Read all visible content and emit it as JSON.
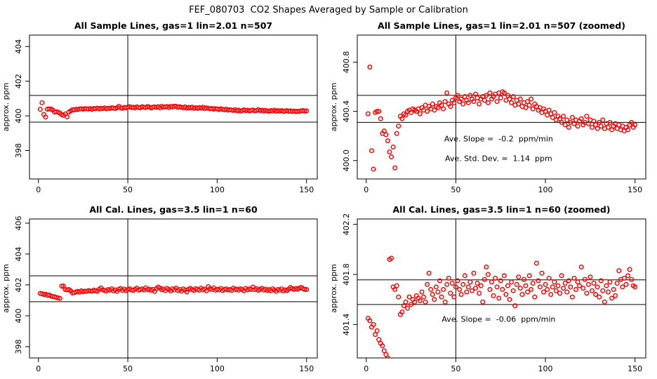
{
  "title": "FEF_080703  CO2 Shapes Averaged by Sample or Calibration",
  "chart_data": [
    {
      "type": "scatter",
      "title": "All Sample Lines, gas=1 lin=2.01 n=507",
      "ylabel": "approx. ppm",
      "color": "#ff0000",
      "x": [
        1,
        2,
        3,
        4,
        5,
        6,
        7,
        8,
        9,
        10,
        11,
        12,
        13,
        14,
        15,
        16,
        17,
        18,
        19,
        20,
        21,
        22,
        23,
        24,
        25,
        26,
        27,
        28,
        29,
        30,
        31,
        32,
        33,
        34,
        35,
        36,
        37,
        38,
        39,
        40,
        41,
        42,
        43,
        44,
        45,
        46,
        47,
        48,
        49,
        50,
        51,
        52,
        53,
        54,
        55,
        56,
        57,
        58,
        59,
        60,
        61,
        62,
        63,
        64,
        65,
        66,
        67,
        68,
        69,
        70,
        71,
        72,
        73,
        74,
        75,
        76,
        77,
        78,
        79,
        80,
        81,
        82,
        83,
        84,
        85,
        86,
        87,
        88,
        89,
        90,
        91,
        92,
        93,
        94,
        95,
        96,
        97,
        98,
        99,
        100,
        101,
        102,
        103,
        104,
        105,
        106,
        107,
        108,
        109,
        110,
        111,
        112,
        113,
        114,
        115,
        116,
        117,
        118,
        119,
        120,
        121,
        122,
        123,
        124,
        125,
        126,
        127,
        128,
        129,
        130,
        131,
        132,
        133,
        134,
        135,
        136,
        137,
        138,
        139,
        140,
        141,
        142,
        143,
        144,
        145,
        146,
        147,
        148,
        149,
        150
      ],
      "values": [
        400.38,
        400.76,
        400.08,
        399.93,
        400.39,
        400.4,
        400.4,
        400.34,
        400.22,
        400.24,
        400.21,
        400.16,
        400.07,
        400.03,
        400.11,
        399.94,
        400.22,
        400.28,
        400.36,
        400.34,
        400.38,
        400.37,
        400.4,
        400.41,
        400.39,
        400.42,
        400.41,
        400.4,
        400.42,
        400.38,
        400.43,
        400.41,
        400.45,
        400.4,
        400.44,
        400.42,
        400.46,
        400.41,
        400.44,
        400.43,
        400.47,
        400.45,
        400.42,
        400.48,
        400.55,
        400.46,
        400.44,
        400.49,
        400.47,
        400.51,
        400.53,
        400.48,
        400.5,
        400.46,
        400.52,
        400.49,
        400.47,
        400.53,
        400.5,
        400.48,
        400.54,
        400.51,
        400.46,
        400.5,
        400.52,
        400.49,
        400.53,
        400.47,
        400.55,
        400.5,
        400.52,
        400.54,
        400.48,
        400.55,
        400.51,
        400.56,
        400.55,
        400.49,
        400.53,
        400.5,
        400.47,
        400.52,
        400.45,
        400.49,
        400.46,
        400.5,
        400.44,
        400.47,
        400.43,
        400.48,
        400.45,
        400.5,
        400.42,
        400.46,
        400.44,
        400.41,
        400.43,
        400.39,
        400.42,
        400.4,
        400.37,
        400.41,
        400.38,
        400.35,
        400.39,
        400.33,
        400.36,
        400.34,
        400.31,
        400.36,
        400.29,
        400.33,
        400.27,
        400.31,
        400.35,
        400.3,
        400.33,
        400.28,
        400.32,
        400.34,
        400.29,
        400.31,
        400.36,
        400.3,
        400.33,
        400.27,
        400.32,
        400.29,
        400.26,
        400.31,
        400.28,
        400.33,
        400.26,
        400.3,
        400.27,
        400.31,
        400.25,
        400.28,
        400.3,
        400.26,
        400.29,
        400.25,
        400.28,
        400.24,
        400.27,
        400.25,
        400.29,
        400.31,
        400.27,
        400.29
      ],
      "xlim": [
        -5,
        156
      ],
      "xticks": [
        0,
        50,
        100,
        150
      ],
      "ylim": [
        396.36,
        404.66
      ],
      "yticks": [
        398,
        400,
        402,
        404
      ],
      "hlines": [
        401.18,
        399.64
      ],
      "vlines": [
        50
      ],
      "annotations": []
    },
    {
      "type": "scatter",
      "title": "All Sample Lines, gas=1 lin=2.01 n=507 (zoomed)",
      "ylabel": "approx. ppm",
      "color": "#ff0000",
      "x": [
        1,
        2,
        3,
        4,
        5,
        6,
        7,
        8,
        9,
        10,
        11,
        12,
        13,
        14,
        15,
        16,
        17,
        18,
        19,
        20,
        21,
        22,
        23,
        24,
        25,
        26,
        27,
        28,
        29,
        30,
        31,
        32,
        33,
        34,
        35,
        36,
        37,
        38,
        39,
        40,
        41,
        42,
        43,
        44,
        45,
        46,
        47,
        48,
        49,
        50,
        51,
        52,
        53,
        54,
        55,
        56,
        57,
        58,
        59,
        60,
        61,
        62,
        63,
        64,
        65,
        66,
        67,
        68,
        69,
        70,
        71,
        72,
        73,
        74,
        75,
        76,
        77,
        78,
        79,
        80,
        81,
        82,
        83,
        84,
        85,
        86,
        87,
        88,
        89,
        90,
        91,
        92,
        93,
        94,
        95,
        96,
        97,
        98,
        99,
        100,
        101,
        102,
        103,
        104,
        105,
        106,
        107,
        108,
        109,
        110,
        111,
        112,
        113,
        114,
        115,
        116,
        117,
        118,
        119,
        120,
        121,
        122,
        123,
        124,
        125,
        126,
        127,
        128,
        129,
        130,
        131,
        132,
        133,
        134,
        135,
        136,
        137,
        138,
        139,
        140,
        141,
        142,
        143,
        144,
        145,
        146,
        147,
        148,
        149,
        150
      ],
      "values": [
        400.38,
        400.76,
        400.08,
        399.93,
        400.39,
        400.4,
        400.4,
        400.34,
        400.22,
        400.24,
        400.21,
        400.16,
        400.07,
        400.03,
        400.11,
        399.94,
        400.22,
        400.28,
        400.36,
        400.34,
        400.38,
        400.37,
        400.4,
        400.41,
        400.39,
        400.42,
        400.41,
        400.4,
        400.42,
        400.38,
        400.43,
        400.41,
        400.45,
        400.4,
        400.44,
        400.42,
        400.46,
        400.41,
        400.44,
        400.43,
        400.47,
        400.45,
        400.42,
        400.48,
        400.55,
        400.46,
        400.44,
        400.49,
        400.47,
        400.51,
        400.53,
        400.48,
        400.5,
        400.46,
        400.52,
        400.49,
        400.47,
        400.53,
        400.5,
        400.48,
        400.54,
        400.51,
        400.46,
        400.5,
        400.52,
        400.49,
        400.53,
        400.47,
        400.55,
        400.5,
        400.52,
        400.54,
        400.48,
        400.55,
        400.51,
        400.56,
        400.55,
        400.49,
        400.53,
        400.5,
        400.47,
        400.52,
        400.45,
        400.49,
        400.46,
        400.5,
        400.44,
        400.47,
        400.43,
        400.48,
        400.45,
        400.5,
        400.42,
        400.46,
        400.44,
        400.41,
        400.43,
        400.39,
        400.42,
        400.4,
        400.37,
        400.41,
        400.38,
        400.35,
        400.39,
        400.33,
        400.36,
        400.34,
        400.31,
        400.36,
        400.29,
        400.33,
        400.27,
        400.31,
        400.35,
        400.3,
        400.33,
        400.28,
        400.32,
        400.34,
        400.29,
        400.31,
        400.36,
        400.3,
        400.33,
        400.27,
        400.32,
        400.29,
        400.26,
        400.31,
        400.28,
        400.33,
        400.26,
        400.3,
        400.27,
        400.31,
        400.25,
        400.28,
        400.3,
        400.26,
        400.29,
        400.25,
        400.28,
        400.24,
        400.27,
        400.25,
        400.29,
        400.31,
        400.27,
        400.29
      ],
      "xlim": [
        -5,
        156
      ],
      "xticks": [
        0,
        50,
        100,
        150
      ],
      "ylim": [
        399.85,
        401.02
      ],
      "yticks": [
        {
          "value": 400,
          "label": "400.0"
        },
        400.4,
        400.8
      ],
      "hlines": [
        400.53,
        400.31
      ],
      "vlines": [
        50
      ],
      "annotations": [
        "Ave. Slope =  -0.2  ppm/min",
        "Ave. Std. Dev. =  1.14  ppm"
      ]
    },
    {
      "type": "scatter",
      "title": "All Cal. Lines, gas=3.5 lin=1 n=60",
      "ylabel": "approx. ppm",
      "color": "#ff0000",
      "x": [
        1,
        2,
        3,
        4,
        5,
        6,
        7,
        8,
        9,
        10,
        11,
        12,
        13,
        14,
        15,
        16,
        17,
        18,
        19,
        20,
        21,
        22,
        23,
        24,
        25,
        26,
        27,
        28,
        29,
        30,
        31,
        32,
        33,
        34,
        35,
        36,
        37,
        38,
        39,
        40,
        41,
        42,
        43,
        44,
        45,
        46,
        47,
        48,
        49,
        50,
        51,
        52,
        53,
        54,
        55,
        56,
        57,
        58,
        59,
        60,
        61,
        62,
        63,
        64,
        65,
        66,
        67,
        68,
        69,
        70,
        71,
        72,
        73,
        74,
        75,
        76,
        77,
        78,
        79,
        80,
        81,
        82,
        83,
        84,
        85,
        86,
        87,
        88,
        89,
        90,
        91,
        92,
        93,
        94,
        95,
        96,
        97,
        98,
        99,
        100,
        101,
        102,
        103,
        104,
        105,
        106,
        107,
        108,
        109,
        110,
        111,
        112,
        113,
        114,
        115,
        116,
        117,
        118,
        119,
        120,
        121,
        122,
        123,
        124,
        125,
        126,
        127,
        128,
        129,
        130,
        131,
        132,
        133,
        134,
        135,
        136,
        137,
        138,
        139,
        140,
        141,
        142,
        143,
        144,
        145,
        146,
        147,
        148,
        149,
        150
      ],
      "values": [
        401.45,
        401.43,
        401.38,
        401.4,
        401.32,
        401.35,
        401.28,
        401.25,
        401.23,
        401.19,
        401.16,
        401.13,
        401.92,
        401.93,
        401.7,
        401.68,
        401.71,
        401.62,
        401.48,
        401.5,
        401.55,
        401.58,
        401.53,
        401.62,
        401.56,
        401.6,
        401.58,
        401.63,
        401.61,
        401.59,
        401.66,
        401.62,
        401.58,
        401.72,
        401.81,
        401.68,
        401.64,
        401.6,
        401.7,
        401.66,
        401.75,
        401.62,
        401.68,
        401.58,
        401.72,
        401.77,
        401.65,
        401.73,
        401.62,
        401.7,
        401.75,
        401.68,
        401.64,
        401.72,
        401.79,
        401.66,
        401.7,
        401.74,
        401.67,
        401.81,
        401.69,
        401.73,
        401.65,
        401.71,
        401.58,
        401.76,
        401.86,
        401.8,
        401.68,
        401.74,
        401.63,
        401.77,
        401.7,
        401.61,
        401.75,
        401.68,
        401.79,
        401.64,
        401.71,
        401.6,
        401.74,
        401.67,
        401.55,
        401.72,
        401.78,
        401.69,
        401.64,
        401.76,
        401.71,
        401.66,
        401.79,
        401.68,
        401.73,
        401.62,
        401.89,
        401.75,
        401.7,
        401.81,
        401.66,
        401.72,
        401.68,
        401.77,
        401.64,
        401.7,
        401.74,
        401.67,
        401.71,
        401.65,
        401.79,
        401.69,
        401.73,
        401.66,
        401.75,
        401.7,
        401.62,
        401.77,
        401.68,
        401.74,
        401.71,
        401.86,
        401.69,
        401.76,
        401.65,
        401.72,
        401.78,
        401.67,
        401.73,
        401.64,
        401.7,
        401.62,
        401.75,
        401.67,
        401.58,
        401.71,
        401.66,
        401.74,
        401.61,
        401.68,
        401.63,
        401.73,
        401.83,
        401.76,
        401.7,
        401.77,
        401.72,
        401.79,
        401.84,
        401.76,
        401.71,
        401.7
      ],
      "xlim": [
        -5,
        156
      ],
      "xticks": [
        0,
        50,
        100,
        150
      ],
      "ylim": [
        397.27,
        406.27
      ],
      "yticks": [
        398,
        400,
        402,
        404,
        406
      ],
      "hlines": [
        402.59,
        400.91
      ],
      "vlines": [
        50
      ],
      "annotations": []
    },
    {
      "type": "scatter",
      "title": "All Cal. Lines, gas=3.5 lin=1 n=60 (zoomed)",
      "ylabel": "approx. ppm",
      "color": "#ff0000",
      "x": [
        1,
        2,
        3,
        4,
        5,
        6,
        7,
        8,
        9,
        10,
        11,
        12,
        13,
        14,
        15,
        16,
        17,
        18,
        19,
        20,
        21,
        22,
        23,
        24,
        25,
        26,
        27,
        28,
        29,
        30,
        31,
        32,
        33,
        34,
        35,
        36,
        37,
        38,
        39,
        40,
        41,
        42,
        43,
        44,
        45,
        46,
        47,
        48,
        49,
        50,
        51,
        52,
        53,
        54,
        55,
        56,
        57,
        58,
        59,
        60,
        61,
        62,
        63,
        64,
        65,
        66,
        67,
        68,
        69,
        70,
        71,
        72,
        73,
        74,
        75,
        76,
        77,
        78,
        79,
        80,
        81,
        82,
        83,
        84,
        85,
        86,
        87,
        88,
        89,
        90,
        91,
        92,
        93,
        94,
        95,
        96,
        97,
        98,
        99,
        100,
        101,
        102,
        103,
        104,
        105,
        106,
        107,
        108,
        109,
        110,
        111,
        112,
        113,
        114,
        115,
        116,
        117,
        118,
        119,
        120,
        121,
        122,
        123,
        124,
        125,
        126,
        127,
        128,
        129,
        130,
        131,
        132,
        133,
        134,
        135,
        136,
        137,
        138,
        139,
        140,
        141,
        142,
        143,
        144,
        145,
        146,
        147,
        148,
        149,
        150
      ],
      "values": [
        401.45,
        401.43,
        401.38,
        401.4,
        401.32,
        401.35,
        401.28,
        401.25,
        401.23,
        401.19,
        401.16,
        401.13,
        401.92,
        401.93,
        401.7,
        401.68,
        401.71,
        401.62,
        401.48,
        401.5,
        401.55,
        401.58,
        401.53,
        401.62,
        401.56,
        401.6,
        401.58,
        401.63,
        401.61,
        401.59,
        401.66,
        401.62,
        401.58,
        401.72,
        401.81,
        401.68,
        401.64,
        401.6,
        401.7,
        401.66,
        401.75,
        401.62,
        401.68,
        401.58,
        401.72,
        401.77,
        401.65,
        401.73,
        401.62,
        401.7,
        401.75,
        401.68,
        401.64,
        401.72,
        401.79,
        401.66,
        401.7,
        401.74,
        401.67,
        401.81,
        401.69,
        401.73,
        401.65,
        401.71,
        401.58,
        401.76,
        401.86,
        401.8,
        401.68,
        401.74,
        401.63,
        401.77,
        401.7,
        401.61,
        401.75,
        401.68,
        401.79,
        401.64,
        401.71,
        401.6,
        401.74,
        401.67,
        401.55,
        401.72,
        401.78,
        401.69,
        401.64,
        401.76,
        401.71,
        401.66,
        401.79,
        401.68,
        401.73,
        401.62,
        401.89,
        401.75,
        401.7,
        401.81,
        401.66,
        401.72,
        401.68,
        401.77,
        401.64,
        401.7,
        401.74,
        401.67,
        401.71,
        401.65,
        401.79,
        401.69,
        401.73,
        401.66,
        401.75,
        401.7,
        401.62,
        401.77,
        401.68,
        401.74,
        401.71,
        401.86,
        401.69,
        401.76,
        401.65,
        401.72,
        401.78,
        401.67,
        401.73,
        401.64,
        401.7,
        401.62,
        401.75,
        401.67,
        401.58,
        401.71,
        401.66,
        401.74,
        401.61,
        401.68,
        401.63,
        401.73,
        401.83,
        401.76,
        401.7,
        401.77,
        401.72,
        401.79,
        401.84,
        401.76,
        401.71,
        401.7
      ],
      "xlim": [
        -5,
        156
      ],
      "xticks": [
        0,
        50,
        100,
        150
      ],
      "ylim": [
        401.133,
        402.243
      ],
      "yticks": [
        401.4,
        401.8,
        402.2
      ],
      "hlines": [
        401.757,
        401.56
      ],
      "vlines": [
        50
      ],
      "annotations": [
        "Ave. Slope =  -0.06  ppm/min"
      ]
    }
  ]
}
